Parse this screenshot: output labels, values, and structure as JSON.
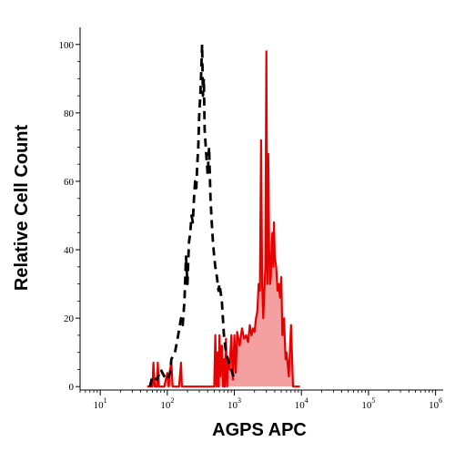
{
  "chart_data": {
    "type": "area",
    "xlabel": "AGPS APC",
    "ylabel": "Relative Cell Count",
    "x_scale": "log",
    "xlim": [
      5,
      1300000
    ],
    "ylim": [
      -1,
      105
    ],
    "x_ticks": [
      {
        "base": "10",
        "exp": "1",
        "value": 10
      },
      {
        "base": "10",
        "exp": "2",
        "value": 100
      },
      {
        "base": "10",
        "exp": "3",
        "value": 1000
      },
      {
        "base": "10",
        "exp": "4",
        "value": 10000
      },
      {
        "base": "10",
        "exp": "5",
        "value": 100000
      },
      {
        "base": "10",
        "exp": "6",
        "value": 1000000
      }
    ],
    "y_ticks": [
      "0",
      "20",
      "40",
      "60",
      "80",
      "100"
    ],
    "grid": false,
    "legend": "none",
    "series": [
      {
        "style": "dashed",
        "color": "#000000",
        "x": [
          55,
          60,
          70,
          80,
          90,
          100,
          110,
          115,
          130,
          145,
          160,
          170,
          180,
          190,
          200,
          210,
          220,
          230,
          240,
          250,
          260,
          270,
          280,
          290,
          300,
          310,
          320,
          330,
          340,
          350,
          360,
          380,
          400,
          420,
          440,
          460,
          480,
          500,
          520,
          550,
          580,
          600,
          650,
          700,
          750,
          800,
          900,
          1000
        ],
        "y": [
          0,
          3,
          2,
          5,
          3,
          2,
          4,
          8,
          10,
          15,
          20,
          18,
          25,
          38,
          30,
          42,
          45,
          50,
          48,
          55,
          60,
          58,
          65,
          70,
          80,
          85,
          92,
          100,
          85,
          90,
          75,
          68,
          62,
          70,
          55,
          48,
          42,
          38,
          35,
          32,
          28,
          30,
          25,
          15,
          10,
          8,
          5,
          2
        ]
      },
      {
        "style": "filled",
        "color": "#e60000",
        "fill": "#f4a0a0",
        "x": [
          50,
          60,
          62,
          65,
          70,
          72,
          75,
          80,
          90,
          100,
          105,
          110,
          115,
          120,
          140,
          150,
          160,
          165,
          170,
          180,
          500,
          520,
          540,
          560,
          580,
          600,
          620,
          650,
          680,
          700,
          720,
          750,
          780,
          800,
          850,
          900,
          950,
          1000,
          1050,
          1100,
          1200,
          1300,
          1400,
          1500,
          1600,
          1700,
          1800,
          1900,
          2000,
          2100,
          2200,
          2300,
          2400,
          2500,
          2600,
          2700,
          2800,
          2900,
          3000,
          3100,
          3200,
          3300,
          3400,
          3500,
          3600,
          3700,
          3800,
          3900,
          4000,
          4200,
          4400,
          4600,
          4800,
          5000,
          5200,
          5500,
          5800,
          6000,
          6500,
          7000,
          7500,
          8000,
          8500,
          9000,
          9500
        ],
        "y": [
          0,
          0,
          7,
          0,
          0,
          7,
          0,
          0,
          0,
          4,
          0,
          5,
          7,
          0,
          0,
          0,
          7,
          0,
          0,
          0,
          0,
          15,
          0,
          10,
          0,
          15,
          3,
          12,
          0,
          8,
          0,
          14,
          0,
          8,
          5,
          15,
          2,
          15,
          4,
          16,
          12,
          17,
          14,
          15,
          13,
          18,
          15,
          17,
          16,
          20,
          22,
          30,
          28,
          72,
          30,
          20,
          28,
          35,
          98,
          30,
          68,
          40,
          30,
          32,
          42,
          45,
          35,
          48,
          38,
          35,
          28,
          30,
          26,
          32,
          15,
          20,
          8,
          10,
          3,
          18,
          0,
          0,
          0,
          0,
          0
        ]
      }
    ]
  }
}
